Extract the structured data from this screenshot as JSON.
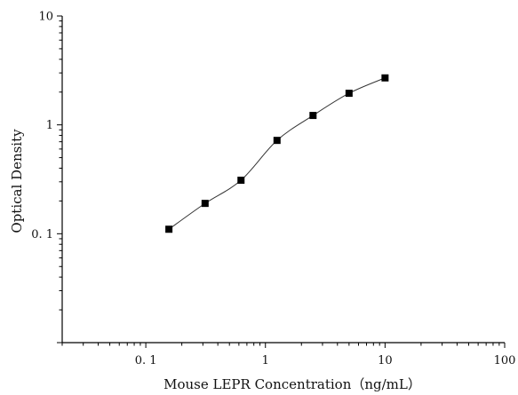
{
  "chart_data": {
    "type": "scatter",
    "xlabel": "Mouse LEPR Concentration（ng/mL）",
    "ylabel": "Optical Density",
    "x_scale": "log",
    "y_scale": "log",
    "xlim": [
      0.02,
      100
    ],
    "ylim": [
      0.01,
      10
    ],
    "x_ticks": [
      {
        "value": 0.1,
        "label": "0. 1"
      },
      {
        "value": 1,
        "label": "1"
      },
      {
        "value": 10,
        "label": "10"
      },
      {
        "value": 100,
        "label": "100"
      }
    ],
    "y_ticks": [
      {
        "value": 0.1,
        "label": "0. 1"
      },
      {
        "value": 1,
        "label": "1"
      },
      {
        "value": 10,
        "label": "10"
      }
    ],
    "grid": false,
    "series": [
      {
        "x": [
          0.156,
          0.313,
          0.625,
          1.25,
          2.5,
          5,
          10
        ],
        "y": [
          0.11,
          0.19,
          0.31,
          0.72,
          1.22,
          1.95,
          2.7
        ]
      }
    ],
    "fit_curve": true,
    "marker_color": "#000000",
    "curve_color": "#333333"
  }
}
